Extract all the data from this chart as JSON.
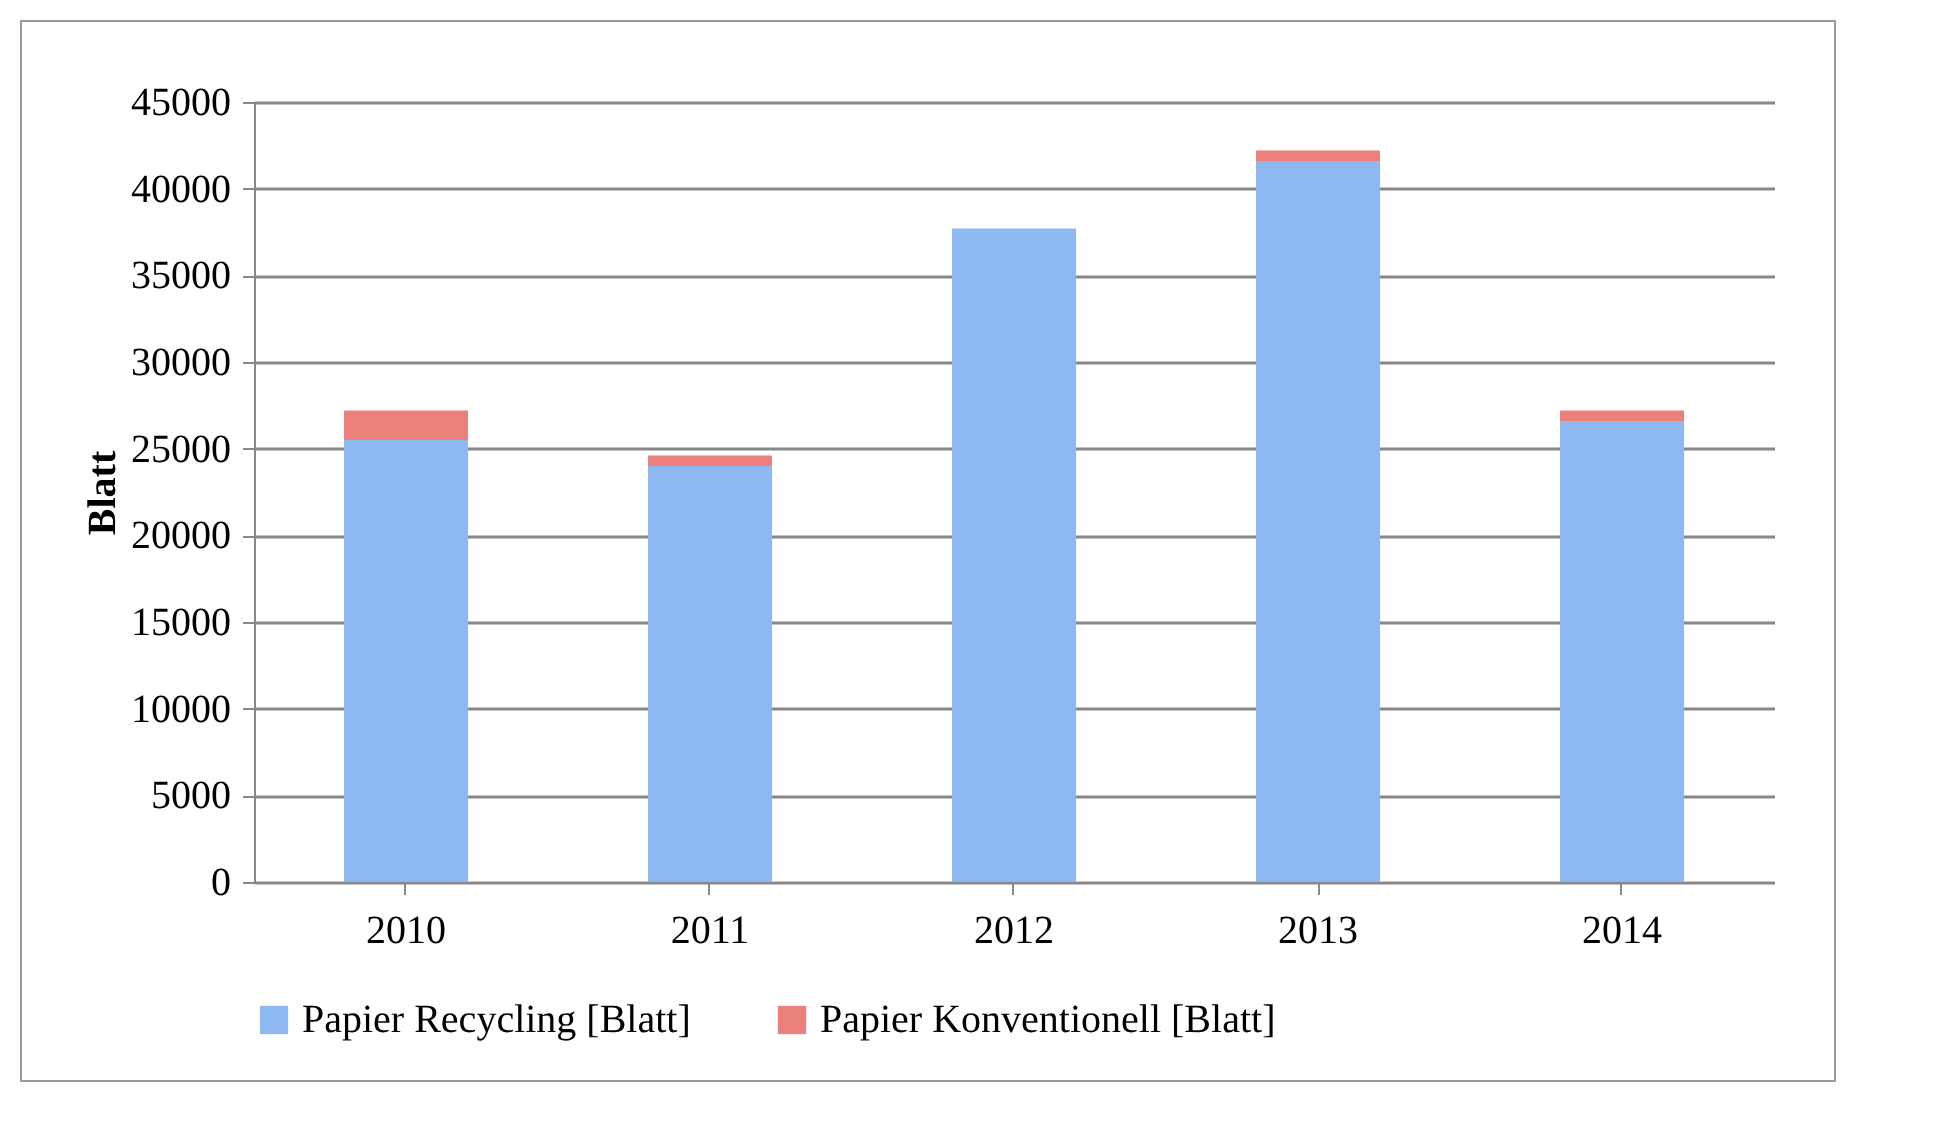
{
  "chart_data": {
    "type": "bar",
    "stacked": true,
    "ylabel": "Blatt",
    "categories": [
      "2010",
      "2011",
      "2012",
      "2013",
      "2014"
    ],
    "series": [
      {
        "name": "Papier Recycling [Blatt]",
        "color": "#8db8f0",
        "values": [
          25500,
          24000,
          37700,
          41600,
          26600
        ]
      },
      {
        "name": "Papier Konventionell [Blatt]",
        "color": "#ec7f7c",
        "values": [
          1700,
          600,
          0,
          600,
          600
        ]
      }
    ],
    "ylim": [
      0,
      45000
    ],
    "yticks": [
      0,
      5000,
      10000,
      15000,
      20000,
      25000,
      30000,
      35000,
      40000,
      45000
    ],
    "grid": "y",
    "legend": "bottom"
  }
}
